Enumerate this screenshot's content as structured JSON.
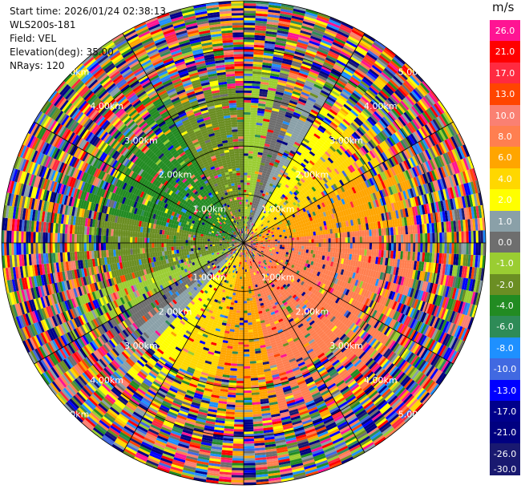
{
  "info": {
    "start_time": "Start time: 2026/01/24 02:38:13",
    "instrument": "WLS200s-181",
    "field": "Field: VEL",
    "elevation": "Elevation(deg): 35.00",
    "nrays": "NRays: 120"
  },
  "colorbar": {
    "unit": "m/s",
    "bands": [
      {
        "label": "26.0",
        "color": "#ff1493"
      },
      {
        "label": "21.0",
        "color": "#ff0000"
      },
      {
        "label": "17.0",
        "color": "#ff2a40"
      },
      {
        "label": "13.0",
        "color": "#ff4500"
      },
      {
        "label": "10.0",
        "color": "#fa8072"
      },
      {
        "label": "8.0",
        "color": "#ff7f50"
      },
      {
        "label": "6.0",
        "color": "#ffa500"
      },
      {
        "label": "4.0",
        "color": "#ffd700"
      },
      {
        "label": "2.0",
        "color": "#ffff00"
      },
      {
        "label": "1.0",
        "color": "#8aa0a8"
      },
      {
        "label": "0.0",
        "color": "#6e6e6e"
      },
      {
        "label": "-1.0",
        "color": "#9acd32"
      },
      {
        "label": "-2.0",
        "color": "#6b8e23"
      },
      {
        "label": "-4.0",
        "color": "#228b22"
      },
      {
        "label": "-6.0",
        "color": "#2e8b57"
      },
      {
        "label": "-8.0",
        "color": "#1e90ff"
      },
      {
        "label": "-10.0",
        "color": "#4169e1"
      },
      {
        "label": "-13.0",
        "color": "#0000ff"
      },
      {
        "label": "-17.0",
        "color": "#00008b"
      },
      {
        "label": "-21.0",
        "color": "#000080"
      },
      {
        "label": "-26.0",
        "color": "#191970"
      }
    ],
    "bottom_label": "-30.0"
  },
  "chart_data": {
    "type": "heatmap",
    "projection": "polar PPI",
    "field": "VEL",
    "elevation_deg": 35.0,
    "n_rays": 120,
    "range_ring_labels": [
      "1.00km",
      "2.00km",
      "3.00km",
      "4.00km",
      "5.00km"
    ],
    "range_rings_km": [
      1,
      2,
      3,
      4,
      5
    ],
    "outer_range_km": 5.0,
    "unit": "m/s",
    "color_levels": [
      26.0,
      21.0,
      17.0,
      13.0,
      10.0,
      8.0,
      6.0,
      4.0,
      2.0,
      1.0,
      0.0,
      -1.0,
      -2.0,
      -4.0,
      -6.0,
      -8.0,
      -10.0,
      -13.0,
      -17.0,
      -21.0,
      -26.0,
      -30.0
    ],
    "pattern_summary": "Coherent flow within ~3.5 km: positive velocities (yellow/orange, 2–13 m/s) to the east and south-east, near-zero grey and negative green (-1 to -6 m/s) to the west and north-west; outer gates noisy."
  }
}
